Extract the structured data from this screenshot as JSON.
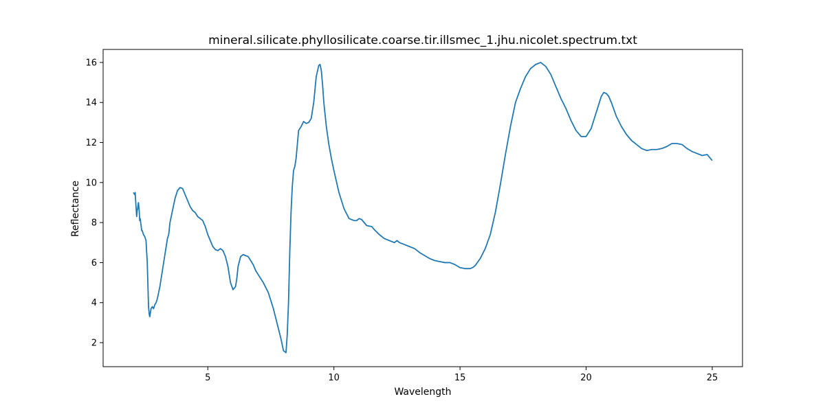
{
  "chart_data": {
    "type": "line",
    "title": "mineral.silicate.phyllosilicate.coarse.tir.illsmec_1.jhu.nicolet.spectrum.txt",
    "xlabel": "Wavelength",
    "ylabel": "Reflectance",
    "xlim": [
      0.85,
      26.2
    ],
    "ylim": [
      0.8,
      16.65
    ],
    "xticks": [
      5,
      10,
      15,
      20,
      25
    ],
    "yticks": [
      2,
      4,
      6,
      8,
      10,
      12,
      14,
      16
    ],
    "grid": false,
    "line_color": "#1f77b4",
    "series": [
      {
        "x": [
          2.05,
          2.1,
          2.12,
          2.15,
          2.18,
          2.2,
          2.22,
          2.25,
          2.28,
          2.3,
          2.32,
          2.35,
          2.38,
          2.4,
          2.45,
          2.5,
          2.55,
          2.6,
          2.65,
          2.68,
          2.7,
          2.75,
          2.8,
          2.85,
          2.9,
          2.95,
          3.0,
          3.1,
          3.2,
          3.3,
          3.4,
          3.45,
          3.5,
          3.6,
          3.7,
          3.8,
          3.9,
          4.0,
          4.1,
          4.2,
          4.3,
          4.4,
          4.5,
          4.6,
          4.8,
          4.9,
          5.0,
          5.1,
          5.2,
          5.3,
          5.4,
          5.5,
          5.6,
          5.7,
          5.8,
          5.9,
          6.0,
          6.1,
          6.15,
          6.2,
          6.3,
          6.4,
          6.5,
          6.6,
          6.7,
          6.8,
          6.9,
          7.0,
          7.2,
          7.4,
          7.6,
          7.7,
          7.8,
          7.9,
          8.0,
          8.1,
          8.15,
          8.2,
          8.25,
          8.3,
          8.35,
          8.4,
          8.45,
          8.5,
          8.6,
          8.7,
          8.8,
          8.9,
          9.0,
          9.1,
          9.2,
          9.3,
          9.4,
          9.45,
          9.5,
          9.55,
          9.6,
          9.7,
          9.8,
          9.9,
          10.0,
          10.2,
          10.4,
          10.6,
          10.8,
          10.9,
          11.0,
          11.1,
          11.2,
          11.3,
          11.5,
          11.6,
          11.8,
          12.0,
          12.2,
          12.4,
          12.5,
          12.6,
          12.8,
          13.0,
          13.2,
          13.4,
          13.6,
          13.8,
          14.0,
          14.2,
          14.4,
          14.6,
          14.8,
          15.0,
          15.2,
          15.4,
          15.5,
          15.6,
          15.8,
          16.0,
          16.2,
          16.4,
          16.6,
          16.8,
          17.0,
          17.2,
          17.4,
          17.6,
          17.8,
          18.0,
          18.2,
          18.4,
          18.6,
          18.8,
          19.0,
          19.2,
          19.4,
          19.6,
          19.8,
          20.0,
          20.2,
          20.4,
          20.6,
          20.7,
          20.8,
          20.9,
          21.0,
          21.2,
          21.4,
          21.6,
          21.8,
          22.0,
          22.2,
          22.4,
          22.6,
          22.8,
          23.0,
          23.2,
          23.4,
          23.6,
          23.8,
          24.0,
          24.2,
          24.4,
          24.6,
          24.8,
          25.0
        ],
        "y": [
          9.5,
          9.4,
          9.5,
          8.9,
          8.3,
          8.6,
          8.7,
          9.0,
          8.6,
          8.1,
          8.2,
          7.9,
          7.6,
          7.6,
          7.4,
          7.3,
          7.1,
          6.0,
          3.8,
          3.4,
          3.3,
          3.7,
          3.8,
          3.7,
          3.9,
          4.0,
          4.2,
          4.8,
          5.6,
          6.4,
          7.2,
          7.4,
          8.0,
          8.6,
          9.2,
          9.6,
          9.75,
          9.7,
          9.4,
          9.1,
          8.8,
          8.6,
          8.5,
          8.3,
          8.1,
          7.8,
          7.4,
          7.1,
          6.8,
          6.65,
          6.6,
          6.7,
          6.6,
          6.3,
          5.8,
          5.0,
          4.65,
          4.8,
          5.2,
          5.8,
          6.3,
          6.4,
          6.35,
          6.3,
          6.1,
          5.9,
          5.6,
          5.4,
          5.0,
          4.5,
          3.7,
          3.2,
          2.7,
          2.2,
          1.6,
          1.5,
          2.4,
          4.0,
          6.5,
          8.5,
          9.8,
          10.6,
          10.8,
          11.2,
          12.6,
          12.8,
          13.05,
          12.95,
          13.0,
          13.2,
          14.0,
          15.3,
          15.85,
          15.9,
          15.6,
          14.9,
          14.0,
          12.8,
          11.9,
          11.2,
          10.6,
          9.5,
          8.7,
          8.2,
          8.1,
          8.1,
          8.2,
          8.15,
          8.0,
          7.85,
          7.8,
          7.65,
          7.4,
          7.2,
          7.1,
          7.0,
          7.1,
          7.0,
          6.9,
          6.8,
          6.7,
          6.5,
          6.35,
          6.2,
          6.1,
          6.05,
          6.0,
          6.0,
          5.9,
          5.75,
          5.7,
          5.7,
          5.75,
          5.85,
          6.2,
          6.7,
          7.4,
          8.5,
          9.9,
          11.4,
          12.8,
          14.0,
          14.7,
          15.3,
          15.7,
          15.9,
          16.0,
          15.8,
          15.4,
          14.8,
          14.2,
          13.7,
          13.1,
          12.6,
          12.3,
          12.3,
          12.7,
          13.5,
          14.3,
          14.5,
          14.45,
          14.3,
          14.0,
          13.3,
          12.8,
          12.4,
          12.1,
          11.9,
          11.7,
          11.6,
          11.65,
          11.65,
          11.7,
          11.8,
          11.95,
          11.95,
          11.9,
          11.7,
          11.55,
          11.45,
          11.35,
          11.4,
          11.1
        ]
      }
    ]
  }
}
